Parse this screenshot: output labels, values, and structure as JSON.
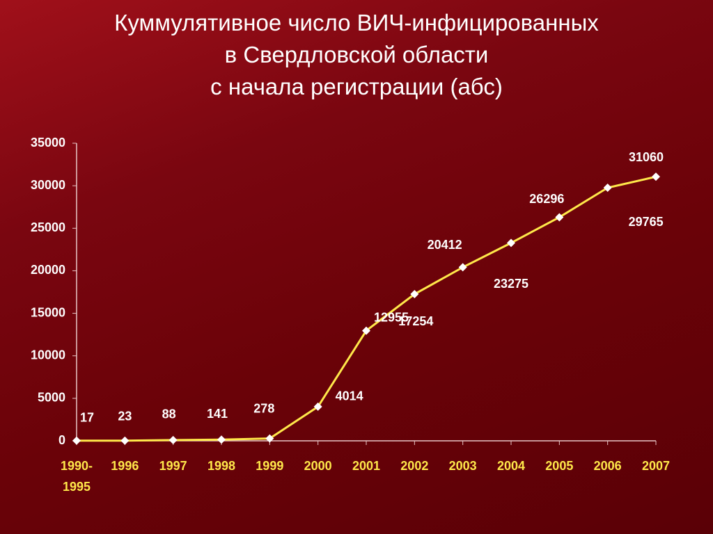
{
  "chart_data": {
    "type": "line",
    "title": "Куммулятивное число ВИЧ-инфицированных\nв Свердловской области\nс начала регистрации (абс)",
    "categories": [
      "1990-\n1995",
      "1996",
      "1997",
      "1998",
      "1999",
      "2000",
      "2001",
      "2002",
      "2003",
      "2004",
      "2005",
      "2006",
      "2007"
    ],
    "series": [
      {
        "name": null,
        "color": "#ffe84a",
        "marker_color": "#ffffff",
        "values": [
          17,
          23,
          88,
          141,
          278,
          4014,
          12955,
          17254,
          20412,
          23275,
          26296,
          29765,
          31060
        ]
      }
    ],
    "ylim": [
      0,
      35000
    ],
    "yticks": [
      0,
      5000,
      10000,
      15000,
      20000,
      25000,
      30000,
      35000
    ],
    "grid": false
  }
}
